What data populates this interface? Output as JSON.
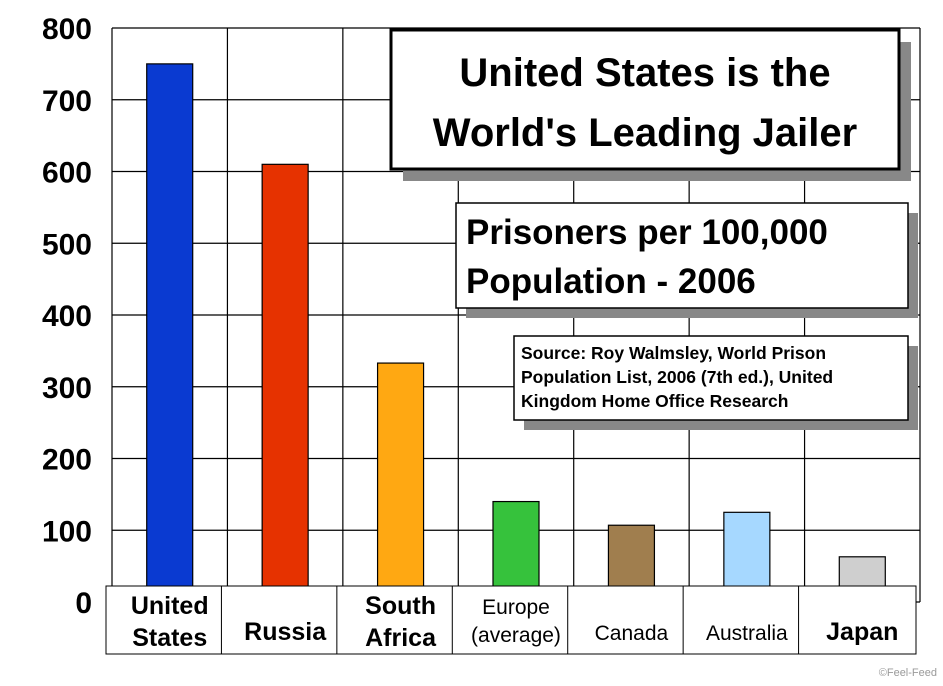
{
  "chart_data": {
    "type": "bar",
    "title_lines": [
      "United States is the",
      "World's Leading Jailer"
    ],
    "subtitle_lines": [
      "Prisoners per 100,000",
      "Population - 2006"
    ],
    "source_lines": [
      "Source: Roy Walmsley, World Prison",
      "Population List, 2006 (7th ed.), United",
      "Kingdom Home Office Research"
    ],
    "categories": [
      {
        "lines": [
          "United",
          "States"
        ],
        "bold": true
      },
      {
        "lines": [
          "Russia"
        ],
        "bold": true
      },
      {
        "lines": [
          "South",
          "Africa"
        ],
        "bold": true
      },
      {
        "lines": [
          "Europe",
          "(average)"
        ],
        "bold": false
      },
      {
        "lines": [
          "Canada"
        ],
        "bold": false
      },
      {
        "lines": [
          "Australia"
        ],
        "bold": false
      },
      {
        "lines": [
          "Japan"
        ],
        "bold": true
      }
    ],
    "values": [
      750,
      610,
      333,
      140,
      107,
      125,
      63
    ],
    "colors": [
      "#0a3ad1",
      "#e63200",
      "#ffa812",
      "#36c23c",
      "#a07e4e",
      "#a6d8ff",
      "#cfcfcf"
    ],
    "ylim": [
      0,
      800
    ],
    "yticks": [
      "0",
      "100",
      "200",
      "300",
      "400",
      "500",
      "600",
      "700",
      "800"
    ],
    "grid": true,
    "xlabel": "",
    "ylabel": ""
  },
  "watermark": "©Feel-Feed"
}
